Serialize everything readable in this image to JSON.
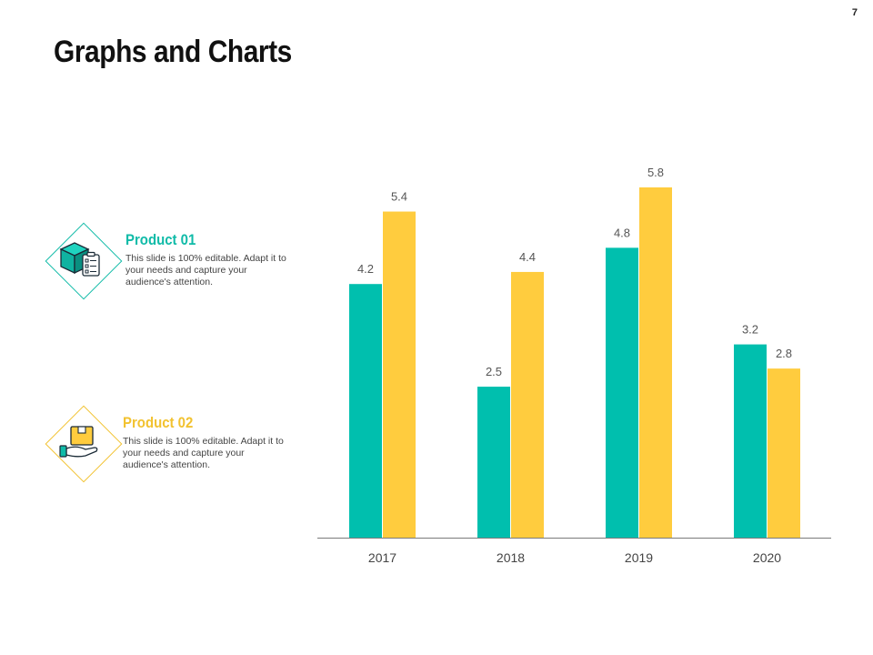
{
  "slide": {
    "title": "Graphs and Charts",
    "page_number": "7"
  },
  "legend": [
    {
      "name": "Product 01",
      "description": "This slide is 100% editable. Adapt it to your needs and capture your audience's attention.",
      "icon": "package-clipboard-icon",
      "color": "#10bba8"
    },
    {
      "name": "Product 02",
      "description": "This slide is 100% editable. Adapt it to your needs and capture your audience's attention.",
      "icon": "hand-box-icon",
      "color": "#f2c230"
    }
  ],
  "chart_data": {
    "type": "bar",
    "title": "",
    "xlabel": "",
    "ylabel": "",
    "categories": [
      "2017",
      "2018",
      "2019",
      "2020"
    ],
    "series": [
      {
        "name": "Product 01",
        "values": [
          4.2,
          2.5,
          4.8,
          3.2
        ],
        "value_labels": [
          "4.2",
          "2.5",
          "4.8",
          "3.2"
        ],
        "color": "#00bfae"
      },
      {
        "name": "Product 02",
        "values": [
          5.4,
          4.4,
          5.8,
          2.8
        ],
        "value_labels": [
          "5.4",
          "4.4",
          "5.8",
          "2.8"
        ],
        "color": "#ffcc3e"
      }
    ],
    "ylim": [
      0,
      7
    ],
    "grid": false,
    "legend": "left"
  }
}
